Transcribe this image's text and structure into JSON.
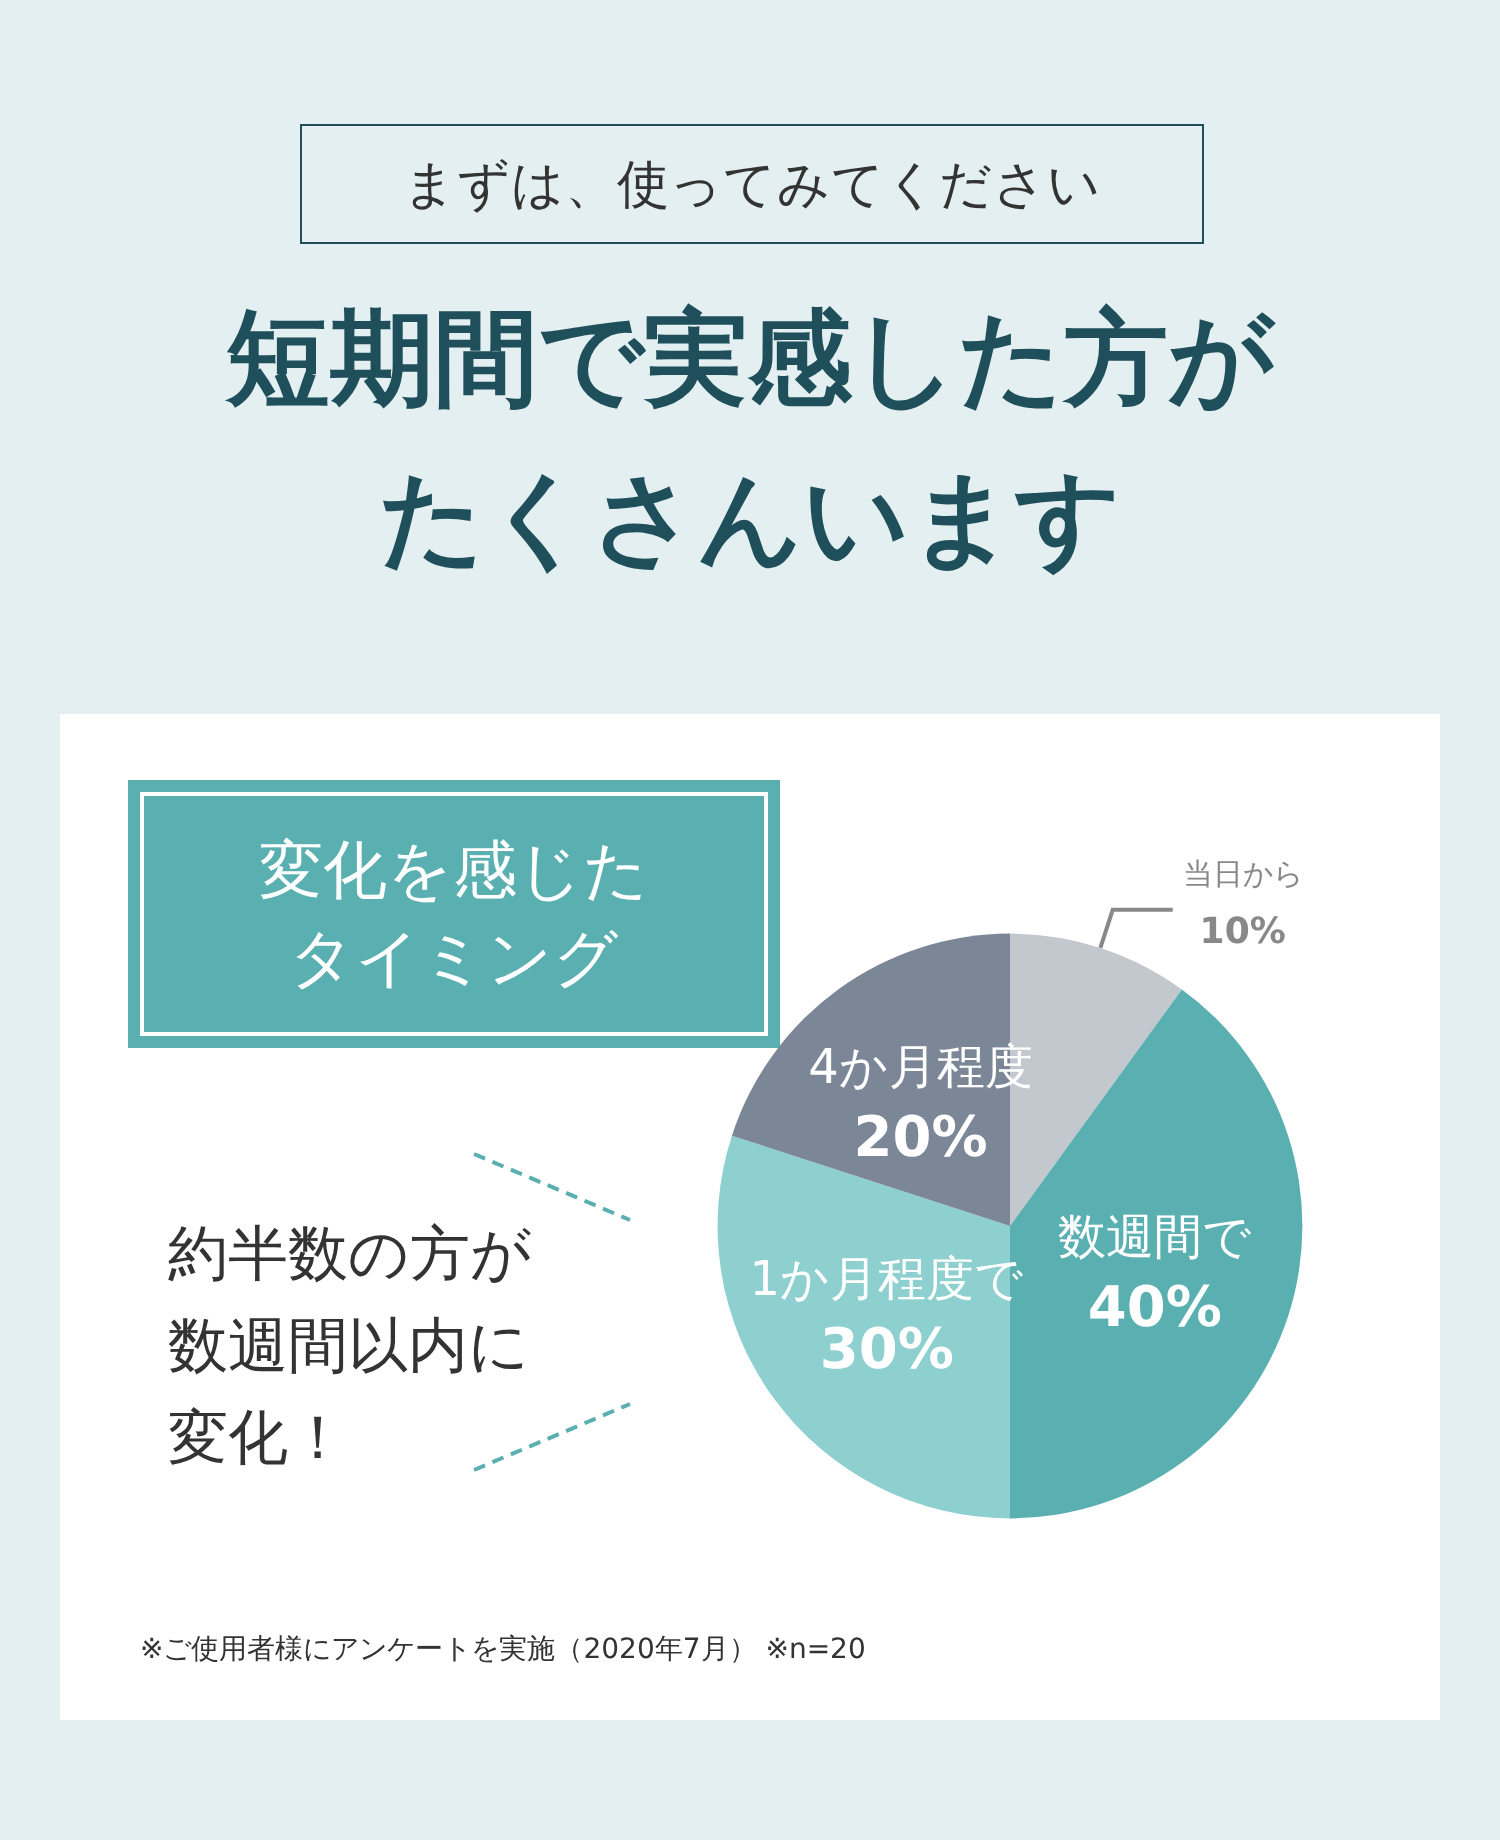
{
  "chart_data": {
    "type": "pie",
    "title": "短期間で実感した方がたくさんいます",
    "subtitle": "まずは、使ってみてください",
    "categories": [
      "当日から",
      "数週間で",
      "1か月程度で",
      "4か月程度"
    ],
    "values": [
      10,
      40,
      30,
      20
    ],
    "colors": [
      "#c3c8ce",
      "#5ab0b1",
      "#8ecfcf",
      "#7b8796"
    ],
    "value_labels": [
      "10%",
      "40%",
      "30%",
      "20%"
    ],
    "annotations": [
      "変化を感じたタイミング",
      "約半数の方が数週間以内に変化！",
      "※ご使用者様にアンケートを実施（2020年7月） ※n=20"
    ],
    "legend": false
  }
}
